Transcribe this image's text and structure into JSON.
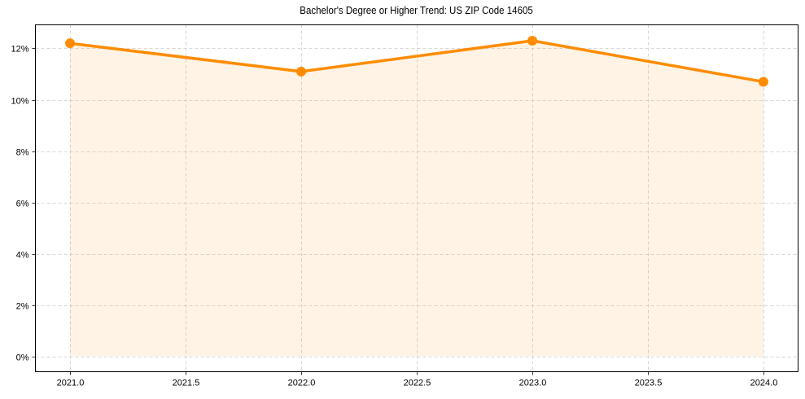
{
  "chart_data": {
    "type": "line",
    "title": "Bachelor's Degree or Higher Trend: US ZIP Code 14605",
    "xlabel": "",
    "ylabel": "",
    "x": [
      2021,
      2022,
      2023,
      2024
    ],
    "series": [
      {
        "name": "Bachelor's Degree or Higher",
        "values": [
          12.2,
          11.1,
          12.3,
          10.7
        ],
        "color": "#ff8c00",
        "fill_color": "#ff8c00",
        "fill_alpha": 0.1,
        "marker": "circle"
      }
    ],
    "xlim": [
      2020.85,
      2024.15
    ],
    "ylim": [
      -0.6,
      12.92
    ],
    "xticks": [
      2021.0,
      2021.5,
      2022.0,
      2022.5,
      2023.0,
      2023.5,
      2024.0
    ],
    "xtick_labels": [
      "2021.0",
      "2021.5",
      "2022.0",
      "2022.5",
      "2023.0",
      "2023.5",
      "2024.0"
    ],
    "yticks": [
      0,
      2,
      4,
      6,
      8,
      10,
      12
    ],
    "ytick_labels": [
      "0%",
      "2%",
      "4%",
      "6%",
      "8%",
      "10%",
      "12%"
    ],
    "grid": true,
    "grid_style": "dashed",
    "legend": false
  }
}
